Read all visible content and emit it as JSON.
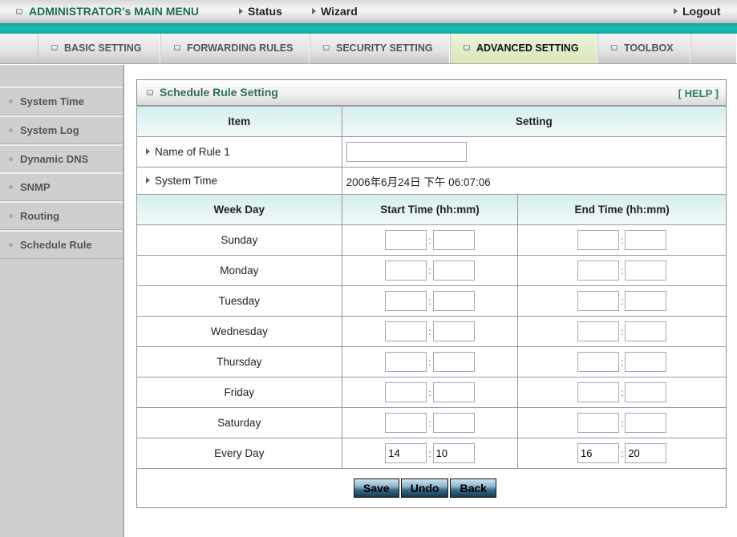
{
  "topbar": {
    "title": "ADMINISTRATOR's MAIN MENU",
    "status": "Status",
    "wizard": "Wizard",
    "logout": "Logout"
  },
  "tabs": [
    {
      "label": "BASIC SETTING"
    },
    {
      "label": "FORWARDING RULES"
    },
    {
      "label": "SECURITY SETTING"
    },
    {
      "label": "ADVANCED SETTING",
      "active": true
    },
    {
      "label": "TOOLBOX"
    }
  ],
  "sidebar": {
    "items": [
      {
        "label": "System Time"
      },
      {
        "label": "System Log"
      },
      {
        "label": "Dynamic DNS"
      },
      {
        "label": "SNMP"
      },
      {
        "label": "Routing"
      },
      {
        "label": "Schedule Rule"
      }
    ]
  },
  "panel": {
    "title": "Schedule Rule Setting",
    "help": "[ HELP ]",
    "col_item": "Item",
    "col_setting": "Setting",
    "name_label": "Name of Rule 1",
    "name_value": "",
    "systime_label": "System Time",
    "systime_value": "2006年6月24日 下午 06:07:06",
    "col_weekday": "Week Day",
    "col_start": "Start Time (hh:mm)",
    "col_end": "End Time (hh:mm)",
    "days": [
      {
        "day": "Sunday",
        "sh": "",
        "sm": "",
        "eh": "",
        "em": ""
      },
      {
        "day": "Monday",
        "sh": "",
        "sm": "",
        "eh": "",
        "em": ""
      },
      {
        "day": "Tuesday",
        "sh": "",
        "sm": "",
        "eh": "",
        "em": ""
      },
      {
        "day": "Wednesday",
        "sh": "",
        "sm": "",
        "eh": "",
        "em": ""
      },
      {
        "day": "Thursday",
        "sh": "",
        "sm": "",
        "eh": "",
        "em": ""
      },
      {
        "day": "Friday",
        "sh": "",
        "sm": "",
        "eh": "",
        "em": ""
      },
      {
        "day": "Saturday",
        "sh": "",
        "sm": "",
        "eh": "",
        "em": ""
      },
      {
        "day": "Every Day",
        "sh": "14",
        "sm": "10",
        "eh": "16",
        "em": "20"
      }
    ],
    "buttons": {
      "save": "Save",
      "undo": "Undo",
      "back": "Back"
    }
  },
  "colors": {
    "teal": "#1cbcb4",
    "title": "#2f6b5c",
    "active_tab": "#d9e6b8"
  }
}
